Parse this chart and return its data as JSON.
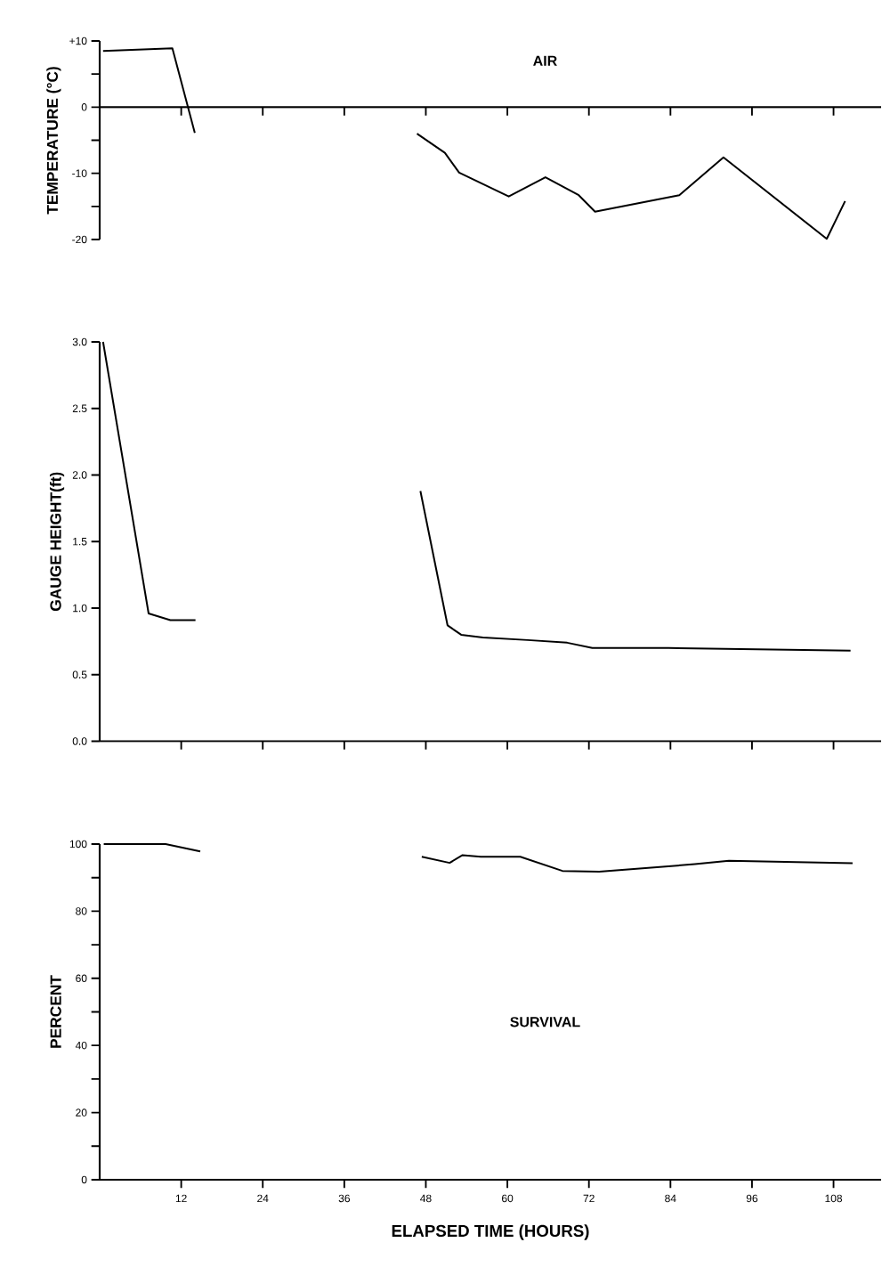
{
  "chart_data": [
    {
      "type": "line",
      "ylabel": "TEMPERATURE (°C)",
      "annotations": [
        "AIR"
      ],
      "xlim": [
        0,
        115
      ],
      "ylim": [
        -20,
        10
      ],
      "xticks": [
        12,
        24,
        36,
        48,
        60,
        72,
        84,
        96,
        108
      ],
      "yticks": [
        {
          "value": 10,
          "label": "+10"
        },
        {
          "value": 5,
          "label": null
        },
        0,
        {
          "value": -5,
          "label": null
        },
        -10,
        {
          "value": -15,
          "label": null
        },
        -20
      ],
      "tick_labels": "y",
      "marker": "none",
      "line_style": "solid",
      "series": [
        {
          "color": "#000000",
          "x": [
            0.5,
            10.7,
            14.0
          ],
          "values": [
            8.5,
            8.9,
            -3.9
          ]
        },
        {
          "color": "#000000",
          "x": [
            46.7,
            50.8,
            52.9,
            60.2,
            65.6,
            70.5,
            72.9,
            85.3,
            91.8,
            107.0,
            109.7
          ],
          "values": [
            -4.0,
            -6.9,
            -9.9,
            -13.5,
            -10.6,
            -13.3,
            -15.8,
            -13.3,
            -7.6,
            -19.9,
            -14.2
          ]
        }
      ]
    },
    {
      "type": "line",
      "ylabel": "GAUGE  HEIGHT(ft)",
      "xlim": [
        0,
        115
      ],
      "ylim": [
        0,
        3
      ],
      "xticks": [
        12,
        24,
        36,
        48,
        60,
        72,
        84,
        96,
        108
      ],
      "yticks": [
        {
          "value": 0,
          "label": "0.0"
        },
        {
          "value": 0.5,
          "label": "0.5"
        },
        {
          "value": 1,
          "label": "1.0"
        },
        {
          "value": 1.5,
          "label": "1.5"
        },
        {
          "value": 2,
          "label": "2.0"
        },
        {
          "value": 2.5,
          "label": "2.5"
        },
        {
          "value": 3,
          "label": "3.0"
        }
      ],
      "tick_labels": "y",
      "marker": "none",
      "line_style": "solid",
      "series": [
        {
          "color": "#000000",
          "x": [
            0.5,
            7.2,
            10.4,
            14.1
          ],
          "values": [
            3.0,
            0.96,
            0.91,
            0.91
          ]
        },
        {
          "color": "#000000",
          "x": [
            47.2,
            51.2,
            53.2,
            56.4,
            63.0,
            68.8,
            72.5,
            83.7,
            110.5
          ],
          "values": [
            1.88,
            0.87,
            0.8,
            0.78,
            0.76,
            0.74,
            0.7,
            0.7,
            0.68
          ]
        }
      ]
    },
    {
      "type": "line",
      "ylabel": "PERCENT",
      "xlabel": "ELAPSED TIME (HOURS)",
      "annotations": [
        "SURVIVAL"
      ],
      "xlim": [
        0,
        115
      ],
      "ylim": [
        0,
        100
      ],
      "xticks": [
        12,
        24,
        36,
        48,
        60,
        72,
        84,
        96,
        108
      ],
      "yticks": [
        0,
        {
          "value": 10,
          "label": null
        },
        20,
        {
          "value": 30,
          "label": null
        },
        40,
        {
          "value": 50,
          "label": null
        },
        60,
        {
          "value": 70,
          "label": null
        },
        80,
        {
          "value": 90,
          "label": null
        },
        100
      ],
      "marker": "none",
      "line_style": "solid",
      "series": [
        {
          "color": "#000000",
          "x": [
            0.6,
            9.7,
            14.8
          ],
          "values": [
            100,
            100,
            97.8
          ]
        },
        {
          "color": "#000000",
          "x": [
            47.4,
            51.5,
            53.4,
            56.1,
            61.9,
            68.1,
            73.5,
            87.6,
            92.6,
            110.8
          ],
          "values": [
            96.2,
            94.4,
            96.7,
            96.2,
            96.2,
            92.0,
            91.8,
            94.0,
            95.0,
            94.3
          ]
        }
      ]
    }
  ]
}
